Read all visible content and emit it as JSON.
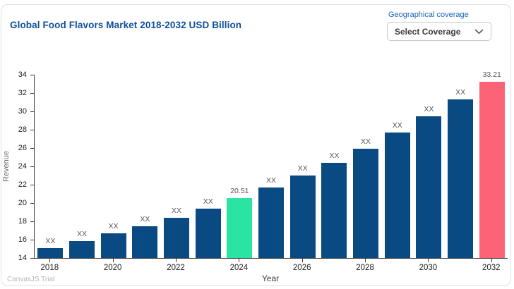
{
  "header": {
    "title": "Global Food Flavors Market 2018-2032 USD Billion",
    "coverage_label": "Geographical coverage",
    "coverage_value": "Select Coverage"
  },
  "watermark": "CanvasJS Trial",
  "chart_data": {
    "type": "bar",
    "title": "Global Food Flavors Market 2018-2032 USD Billion",
    "xlabel": "Year",
    "ylabel": "Revenue",
    "ylim": [
      14,
      34
    ],
    "y_tick_step": 2,
    "x_tick_interval": 2,
    "grid": false,
    "legend": "none",
    "categories": [
      "2018",
      "2019",
      "2020",
      "2021",
      "2022",
      "2023",
      "2024",
      "2025",
      "2026",
      "2027",
      "2028",
      "2029",
      "2030",
      "2031",
      "2032"
    ],
    "values": [
      15.1,
      15.85,
      16.7,
      17.5,
      18.4,
      19.4,
      20.51,
      21.7,
      23.0,
      24.4,
      25.9,
      27.7,
      29.5,
      31.3,
      33.21
    ],
    "bar_labels": [
      "XX",
      "XX",
      "XX",
      "XX",
      "XX",
      "XX",
      "20.51",
      "XX",
      "XX",
      "XX",
      "XX",
      "XX",
      "XX",
      "XX",
      "33.21"
    ],
    "x_ticks_shown": [
      "2018",
      "2020",
      "2022",
      "2024",
      "2026",
      "2028",
      "2030",
      "2032"
    ],
    "highlight_colors": {
      "2024": "#2ae4a4",
      "2032": "#fd6377"
    },
    "colors": {
      "bar_default": "#084a81",
      "highlight_2024": "#2ae4a4",
      "highlight_2032": "#fd6377",
      "title": "#0d4e9e",
      "coverage_label": "#1a66b8",
      "axis_line": "#3c3c3c"
    }
  }
}
